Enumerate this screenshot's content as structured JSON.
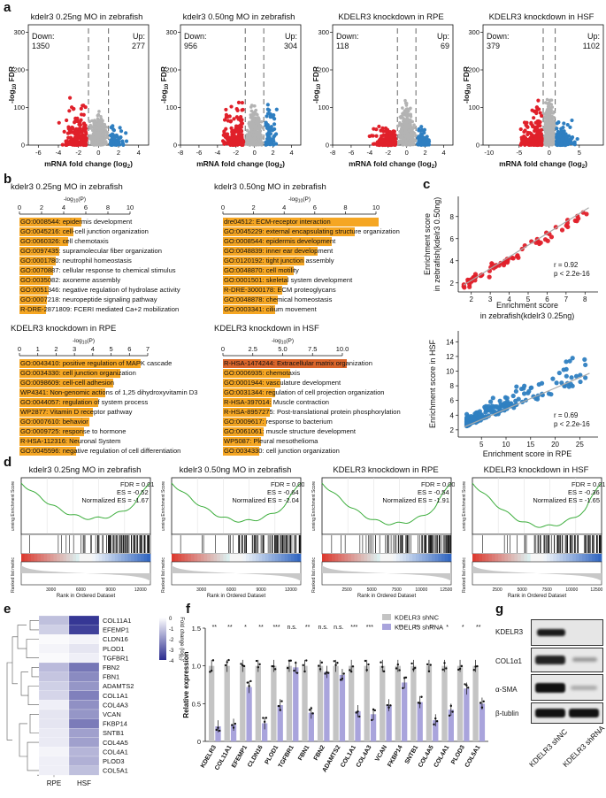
{
  "panels": {
    "a": "a",
    "b": "b",
    "c": "c",
    "d": "d",
    "e": "e",
    "f": "f",
    "g": "g"
  },
  "colors": {
    "down": "#e0202a",
    "up": "#2f7fc1",
    "ns": "#b3b3b3",
    "bar": "#f5a623",
    "bar_dark": "#d9652b",
    "heat": "#2b2c8f"
  },
  "volcano": {
    "xlabel": "mRNA fold change (log",
    "xlabel_sub": "2",
    "ylabel": "-log",
    "ylabel_sub": "10",
    "ylabel_tail": " FDR",
    "plots": [
      {
        "title": "kdelr3 0.25ng MO in zebrafish",
        "down_label": "Down:",
        "down": "1350",
        "up_label": "Up:",
        "up": "277",
        "xticks": [
          "-6",
          "-4",
          "-2",
          "0",
          "2",
          "4"
        ],
        "yticks": [
          "0",
          "100",
          "200",
          "300"
        ]
      },
      {
        "title": "kdelr3 0.50ng MO in zebrafish",
        "down_label": "Down:",
        "down": "956",
        "up_label": "Up:",
        "up": "304",
        "xticks": [
          "-8",
          "-6",
          "-4",
          "-2",
          "0",
          "2",
          "4"
        ],
        "yticks": [
          "0",
          "100",
          "200",
          "300"
        ]
      },
      {
        "title": "KDELR3 knockdown in RPE",
        "down_label": "Down:",
        "down": "118",
        "up_label": "Up:",
        "up": "69",
        "xticks": [
          "-8",
          "-6",
          "-4",
          "-2",
          "0",
          "2",
          "4"
        ],
        "yticks": [
          "0",
          "100",
          "200",
          "300"
        ]
      },
      {
        "title": "KDELR3 knockdown in HSF",
        "down_label": "Down:",
        "down": "379",
        "up_label": "Up:",
        "up": "1102",
        "xticks": [
          "-10",
          "-5",
          "0",
          "5"
        ],
        "yticks": [
          "0",
          "100",
          "200",
          "300"
        ]
      }
    ]
  },
  "go": {
    "axis_label": "-log",
    "axis_sub": "10",
    "axis_tail": "(P)",
    "sets": [
      {
        "title": "kdelr3 0.25ng MO in zebrafish",
        "ticks": [
          "0",
          "2",
          "4",
          "6",
          "8",
          "10"
        ],
        "max": 10,
        "items": [
          {
            "text": "GO:0008544: epidermis development",
            "v": 5.6
          },
          {
            "text": "GO:0045216: cell-cell junction organization",
            "v": 4.9
          },
          {
            "text": "GO:0060326: cell chemotaxis",
            "v": 4.4
          },
          {
            "text": "GO:0097435: supramolecular fiber organization",
            "v": 3.6
          },
          {
            "text": "GO:0001780: neutrophil homeostasis",
            "v": 3.3
          },
          {
            "text": "GO:0070887: cellular response to chemical stimulus",
            "v": 3.0
          },
          {
            "text": "GO:0035082: axoneme assembly",
            "v": 2.8
          },
          {
            "text": "GO:0051346: negative regulation of hydrolase activity",
            "v": 2.6
          },
          {
            "text": "GO:0007218: neuropeptide signaling pathway",
            "v": 2.5
          },
          {
            "text": "R-DRE-2871809: FCERI mediated Ca+2 mobilization",
            "v": 2.4
          }
        ]
      },
      {
        "title": "kdelr3 0.50ng MO in zebrafish",
        "ticks": [
          "0",
          "2",
          "4",
          "6",
          "8",
          "10"
        ],
        "max": 10,
        "items": [
          {
            "text": "dre04512: ECM-receptor interaction",
            "v": 10.2
          },
          {
            "text": "GO:0045229: external encapsulating structure organization",
            "v": 8.6
          },
          {
            "text": "GO:0008544: epidermis development",
            "v": 7.1
          },
          {
            "text": "GO:0048839: inner ear development",
            "v": 6.2
          },
          {
            "text": "GO:0120192: tight junction assembly",
            "v": 5.3
          },
          {
            "text": "GO:0048870: cell motility",
            "v": 4.6
          },
          {
            "text": "GO:0001501: skeletal system development",
            "v": 4.2
          },
          {
            "text": "R-DRE-3000178: ECM proteoglycans",
            "v": 3.9
          },
          {
            "text": "GO:0048878: chemical homeostasis",
            "v": 3.6
          },
          {
            "text": "GO:0003341: cilium movement",
            "v": 3.4
          }
        ]
      },
      {
        "title": "KDELR3 knockdown in RPE",
        "ticks": [
          "0",
          "1",
          "2",
          "3",
          "4",
          "5",
          "6",
          "7"
        ],
        "max": 7,
        "items": [
          {
            "text": "GO:0043410: positive regulation of MAPK cascade",
            "v": 6.6
          },
          {
            "text": "GO:0034330: cell junction organization",
            "v": 5.5
          },
          {
            "text": "GO:0098609: cell-cell adhesion",
            "v": 5.1
          },
          {
            "text": "WP4341: Non-genomic actions of 1,25 dihydroxyvitamin D3",
            "v": 4.7
          },
          {
            "text": "GO:0044057: regulation of system process",
            "v": 4.3
          },
          {
            "text": "WP2877: Vitamin D receptor pathway",
            "v": 4.0
          },
          {
            "text": "GO:0007610: behavior",
            "v": 3.8
          },
          {
            "text": "GO:0009725: response to hormone",
            "v": 3.5
          },
          {
            "text": "R-HSA-112316: Neuronal System",
            "v": 3.3
          },
          {
            "text": "GO:0045596: negative regulation of cell differentiation",
            "v": 3.1
          }
        ]
      },
      {
        "title": "KDELR3 knockdown in HSF",
        "ticks": [
          "0",
          "2.5",
          "5.0",
          "7.5",
          "10.0"
        ],
        "max": 10,
        "items": [
          {
            "text": "R-HSA-1474244: Extracellular matrix organization",
            "v": 10.4
          },
          {
            "text": "GO:0006935: chemotaxis",
            "v": 5.6
          },
          {
            "text": "GO:0001944: vasculature development",
            "v": 4.8
          },
          {
            "text": "GO:0031344: regulation of cell projection organization",
            "v": 4.4
          },
          {
            "text": "R-HSA-397014: Muscle contraction",
            "v": 4.1
          },
          {
            "text": "R-HSA-8957275: Post-translational protein phosphorylation",
            "v": 3.9
          },
          {
            "text": "GO:0009617: response to bacterium",
            "v": 3.6
          },
          {
            "text": "GO:0061061: muscle structure development",
            "v": 3.4
          },
          {
            "text": "WP5087: Pleural mesothelioma",
            "v": 3.2
          },
          {
            "text": "GO:0034330: cell junction organization",
            "v": 3.0
          }
        ]
      }
    ]
  },
  "scatter": {
    "top": {
      "xlabel1": "Enrichment score",
      "xlabel2": "in zebrafish(kdelr3 0.25ng)",
      "ylabel1": "Enrichment score",
      "ylabel2": "in zebrafish(kdelr3 0.50ng)",
      "r": "r = 0.92",
      "p": "p < 2.2e-16",
      "xticks": [
        "2",
        "3",
        "4",
        "5",
        "6",
        "7",
        "8"
      ],
      "yticks": [
        "2",
        "4",
        "6",
        "8"
      ]
    },
    "bottom": {
      "xlabel": "Enrichment score in RPE",
      "ylabel": "Enrichment score in HSF",
      "r": "r = 0.69",
      "p": "p < 2.2e-16",
      "xticks": [
        "5",
        "10",
        "15",
        "20",
        "25"
      ],
      "yticks": [
        "2",
        "4",
        "6",
        "8",
        "10",
        "12",
        "14"
      ]
    }
  },
  "gsea": {
    "ylabel": "unning Enrichment Score",
    "rank_label": "Ranked list metric",
    "xlabel": "Rank in Ordered Dataset",
    "plots": [
      {
        "title": "kdelr3 0.25ng MO in zebrafish",
        "fdr": "FDR = 0.01",
        "es": "ES = -0.52",
        "nes": "Normalized ES = -1.67",
        "xticks": [
          "3000",
          "6000",
          "9000",
          "12000"
        ]
      },
      {
        "title": "kdelr3 0.50ng MO in zebrafish",
        "fdr": "FDR = 0.002",
        "es": "ES = -0.64",
        "nes": "Normalized ES = -2.04",
        "xticks": [
          "3000",
          "6000",
          "9000",
          "12000"
        ]
      },
      {
        "title": "KDELR3 knockdown in RPE",
        "fdr": "FDR = 0.003",
        "es": "ES = -0.54",
        "nes": "Normalized ES = -1.91",
        "xticks": [
          "2500",
          "5000",
          "7500",
          "10000",
          "12500"
        ]
      },
      {
        "title": "KDELR3 knockdown in HSF",
        "fdr": "FDR = 0.01",
        "es": "ES = -0.36",
        "nes": "Normalized ES = -1.65",
        "xticks": [
          "2500",
          "5000",
          "7500",
          "10000",
          "12500"
        ]
      }
    ]
  },
  "heatmap": {
    "genes": [
      "COL11A1",
      "EFEMP1",
      "CLDN16",
      "PLOD1",
      "TGFBR1",
      "FBN2",
      "FBN1",
      "ADAMTS2",
      "COL1A1",
      "COL4A3",
      "VCAN",
      "FKBP14",
      "SNTB1",
      "COL4A5",
      "COL4A1",
      "PLOD3",
      "COL5A1"
    ],
    "columns": [
      "RPE",
      "HSF"
    ],
    "rpe": [
      -1.2,
      -0.9,
      -0.1,
      -0.2,
      -0.1,
      -1.3,
      -1.1,
      -0.9,
      -0.8,
      -0.3,
      -0.5,
      -0.5,
      -0.4,
      -0.4,
      -0.2,
      -0.3,
      -0.3
    ],
    "hsf": [
      -3.8,
      -3.6,
      -0.2,
      -0.5,
      -0.3,
      -2.6,
      -2.2,
      -2.0,
      -2.4,
      -2.1,
      -2.0,
      -2.5,
      -1.8,
      -1.8,
      -1.4,
      -1.5,
      -1.2
    ],
    "legend_title": "Fold change (log",
    "legend_sub": "2",
    "legend_ticks": [
      "0",
      "-1",
      "-2",
      "-3",
      "-4"
    ]
  },
  "barchart": {
    "ylabel": "Relative expression",
    "legend": [
      "KDELR3 shNC",
      "KDELR3 shRNA"
    ],
    "yticks": [
      "0",
      "0.5",
      "1.0",
      "1.5"
    ],
    "genes": [
      "KDELR3",
      "COL11A1",
      "EFEMP1",
      "CLDN16",
      "PLOD1",
      "TGFBR1",
      "FBN1",
      "FBN2",
      "ADAMTS2",
      "COL1A1",
      "COL4A3",
      "VCAN",
      "FKBP14",
      "SNTB1",
      "COL4A5",
      "COL4A1",
      "PLOD3",
      "COL5A1"
    ],
    "sig": [
      "**",
      "**",
      "*",
      "**",
      "***",
      "n.s.",
      "**",
      "n.s.",
      "n.s.",
      "***",
      "***",
      "**",
      "**",
      "**",
      "**",
      "*",
      "*",
      "**"
    ],
    "shnc": [
      1,
      1,
      1,
      1,
      1,
      1,
      1,
      1,
      1,
      1,
      1,
      1,
      1,
      1,
      1,
      1,
      1,
      1
    ],
    "shrna": [
      0.2,
      0.22,
      0.72,
      0.24,
      0.48,
      0.98,
      0.38,
      0.92,
      0.88,
      0.4,
      0.36,
      0.48,
      0.78,
      0.52,
      0.28,
      0.42,
      0.7,
      0.5
    ]
  },
  "western": {
    "labels": [
      "KDELR3",
      "COL1α1",
      "α-SMA",
      "β-tublin"
    ],
    "lanes": [
      "KDELR3 shNC",
      "KDELR3 shRNA"
    ]
  }
}
